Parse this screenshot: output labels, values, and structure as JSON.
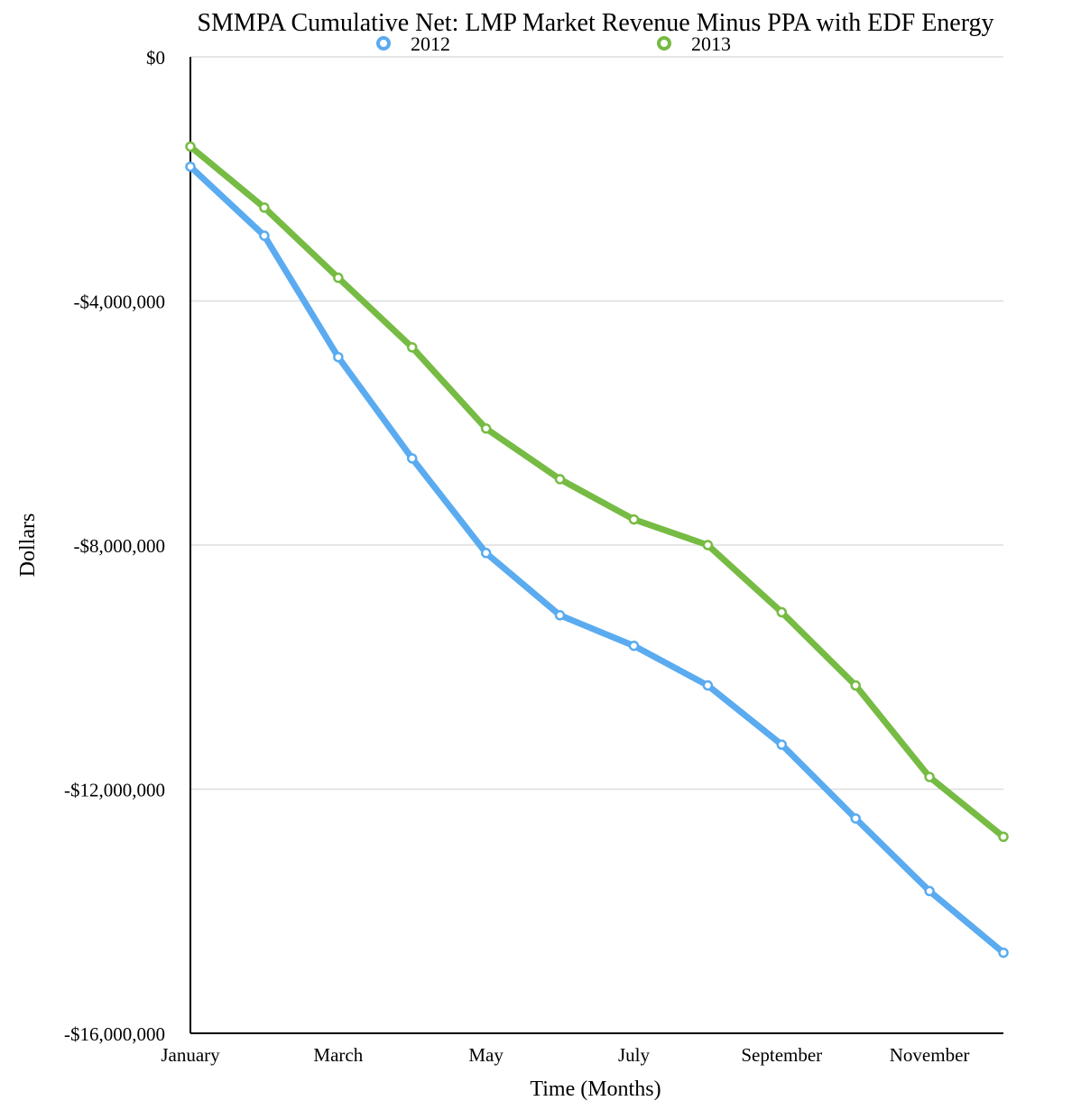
{
  "chart_data": {
    "type": "line",
    "title": "SMMPA Cumulative Net: LMP Market Revenue Minus PPA with EDF Energy",
    "xlabel": "Time (Months)",
    "ylabel": "Dollars",
    "x": [
      1,
      2,
      3,
      4,
      5,
      6,
      7,
      8,
      9,
      10,
      11,
      12
    ],
    "x_tick_labels": [
      {
        "x": 1,
        "label": "January"
      },
      {
        "x": 3,
        "label": "March"
      },
      {
        "x": 5,
        "label": "May"
      },
      {
        "x": 7,
        "label": "July"
      },
      {
        "x": 9,
        "label": "September"
      },
      {
        "x": 11,
        "label": "November"
      }
    ],
    "y_ticks": [
      {
        "value": 0,
        "label": "$0"
      },
      {
        "value": -4000000,
        "label": "-$4,000,000"
      },
      {
        "value": -8000000,
        "label": "-$8,000,000"
      },
      {
        "value": -12000000,
        "label": "-$12,000,000"
      },
      {
        "value": -16000000,
        "label": "-$16,000,000"
      }
    ],
    "ylim": [
      -16000000,
      0
    ],
    "xlim": [
      1,
      12
    ],
    "grid": true,
    "legend_position": "top",
    "series": [
      {
        "name": "2012",
        "color": "#5aabf0",
        "values": [
          -1800000,
          -2930000,
          -4920000,
          -6580000,
          -8130000,
          -9150000,
          -9650000,
          -10300000,
          -11270000,
          -12480000,
          -13670000,
          -14680000
        ]
      },
      {
        "name": "2013",
        "color": "#76bb43",
        "values": [
          -1470000,
          -2470000,
          -3620000,
          -4760000,
          -6090000,
          -6920000,
          -7580000,
          -8000000,
          -9100000,
          -10300000,
          -11800000,
          -12780000
        ]
      }
    ]
  }
}
